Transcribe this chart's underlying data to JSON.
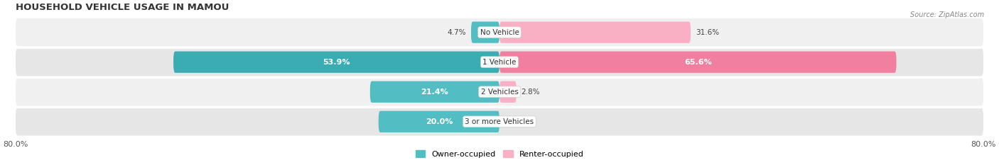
{
  "title": "HOUSEHOLD VEHICLE USAGE IN MAMOU",
  "source": "Source: ZipAtlas.com",
  "categories": [
    "No Vehicle",
    "1 Vehicle",
    "2 Vehicles",
    "3 or more Vehicles"
  ],
  "owner_values": [
    4.7,
    53.9,
    21.4,
    20.0
  ],
  "renter_values": [
    31.6,
    65.6,
    2.8,
    0.0
  ],
  "owner_color": "#52bec4",
  "renter_color": "#f07fa0",
  "owner_color_dark": "#3aacb2",
  "renter_color_light": "#f9afc4",
  "row_bg_odd": "#f0f0f0",
  "row_bg_even": "#e6e6e6",
  "xlim": 80.0,
  "title_fontsize": 9.5,
  "label_fontsize": 7.5,
  "inside_label_fontsize": 8,
  "tick_fontsize": 8,
  "source_fontsize": 7,
  "legend_fontsize": 8,
  "bar_height": 0.72,
  "figsize": [
    14.06,
    2.33
  ],
  "dpi": 100
}
